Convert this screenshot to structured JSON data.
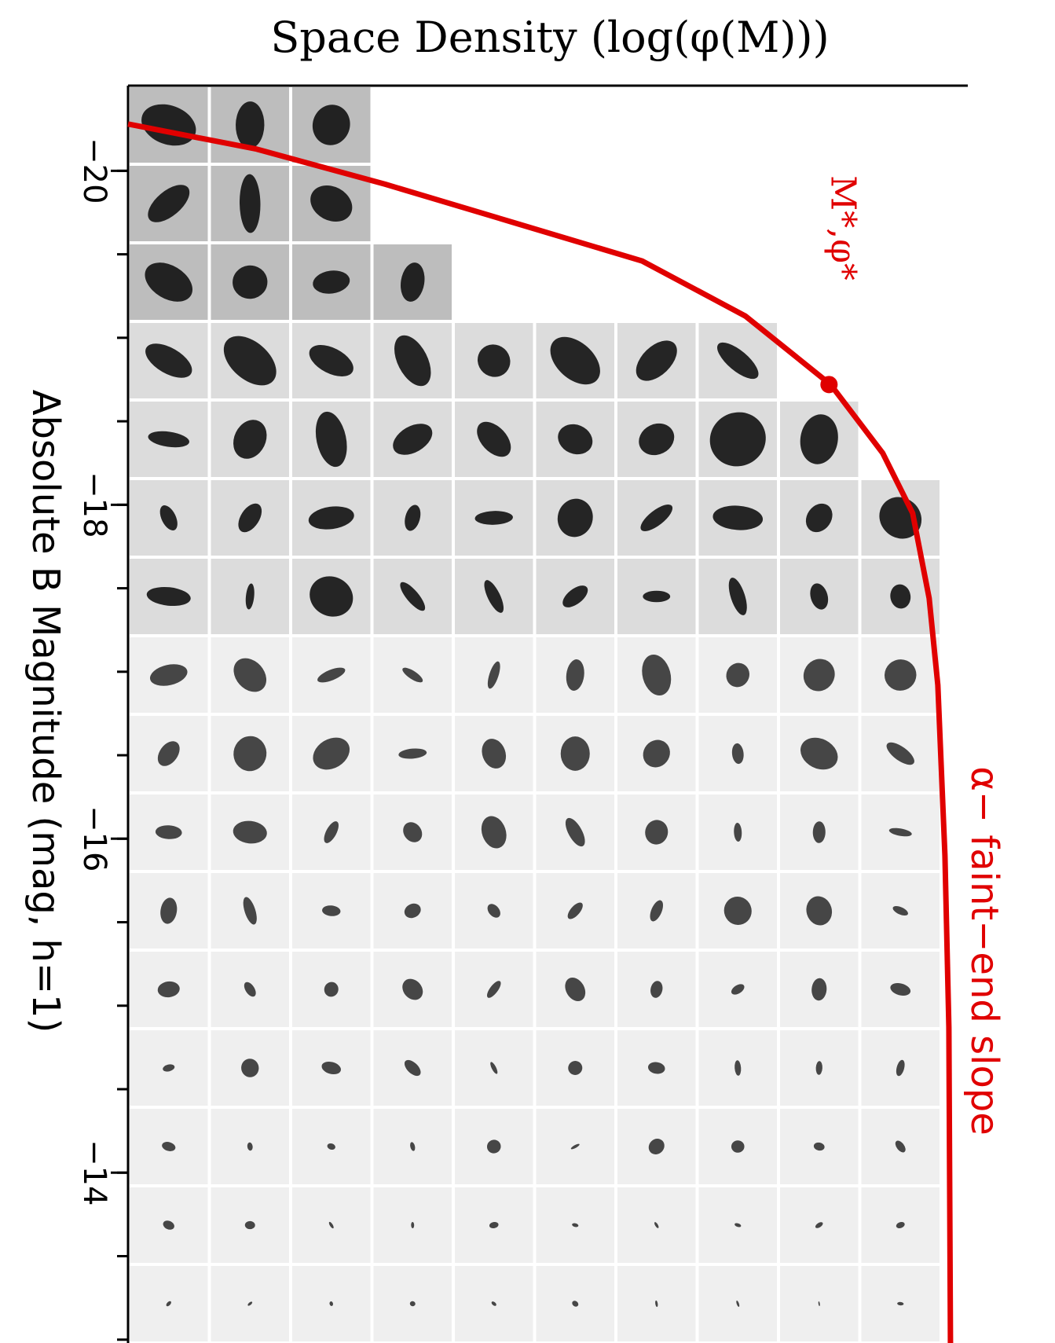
{
  "chart_data": {
    "type": "line",
    "xlabel": "Space Density (log(φ(M)))",
    "ylabel": "Absolute B Magnitude (mag, h=1)",
    "xlim": [
      0,
      10.65
    ],
    "ylim": [
      -20.51,
      -12.98
    ],
    "yticks": [
      {
        "value": -20,
        "label": "−20"
      },
      {
        "value": -18,
        "label": "−18"
      },
      {
        "value": -16,
        "label": "−16"
      },
      {
        "value": -14,
        "label": "−14"
      }
    ],
    "yminorticks": [
      -20,
      -19.5,
      -19,
      -18.5,
      -18,
      -17.5,
      -17,
      -16.5,
      -16,
      -15.5,
      -15,
      -14.5,
      -14,
      -13.5,
      -13
    ],
    "series": [
      {
        "color": "#e00000",
        "x": [
          0,
          1.63,
          3.26,
          4.89,
          6.52,
          7.83,
          8.91,
          9.57,
          9.95,
          10.16,
          10.27,
          10.36,
          10.41,
          10.43
        ],
        "values": [
          -20.28,
          -20.13,
          -19.92,
          -19.69,
          -19.46,
          -19.13,
          -18.72,
          -18.31,
          -17.95,
          -17.44,
          -16.92,
          -15.9,
          -14.87,
          -12.98
        ]
      }
    ],
    "annotations": [
      {
        "text": "M*,φ*",
        "x": 8.89,
        "y": -18.72
      },
      {
        "text": "α− faint−end slope"
      }
    ]
  }
}
